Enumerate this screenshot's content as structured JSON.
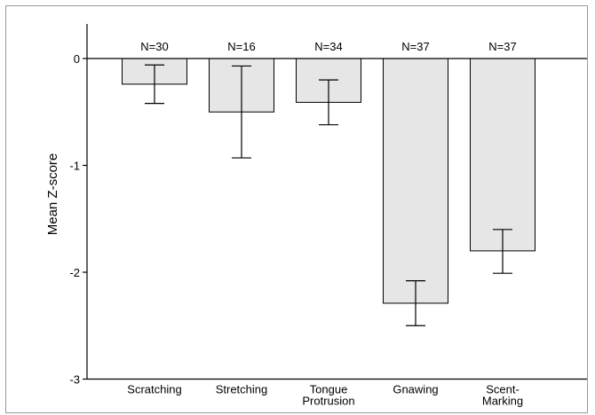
{
  "chart_data": {
    "type": "bar",
    "title": "",
    "xlabel": "",
    "ylabel": "Mean Z-score",
    "ylim": [
      -3,
      0.35
    ],
    "yticks": [
      0,
      -1,
      -2,
      -3
    ],
    "ytick_labels": [
      "0",
      "-1",
      "-2",
      "-3"
    ],
    "grid": false,
    "categories": [
      [
        "Scratching"
      ],
      [
        "Stretching"
      ],
      [
        "Tongue",
        "Protrusion"
      ],
      [
        "Gnawing"
      ],
      [
        "Scent-",
        "Marking"
      ]
    ],
    "values": [
      -0.24,
      -0.5,
      -0.41,
      -2.29,
      -1.8
    ],
    "error_low": [
      -0.42,
      -0.93,
      -0.62,
      -2.5,
      -2.01
    ],
    "error_high": [
      -0.06,
      -0.07,
      -0.2,
      -2.08,
      -1.6
    ],
    "n_labels": [
      "N=30",
      "N=16",
      "N=34",
      "N=37",
      "N=37"
    ],
    "colors": {
      "bar_fill": "#e6e6e6",
      "bar_stroke": "#000000",
      "axis": "#000000",
      "error": "#000000"
    }
  }
}
